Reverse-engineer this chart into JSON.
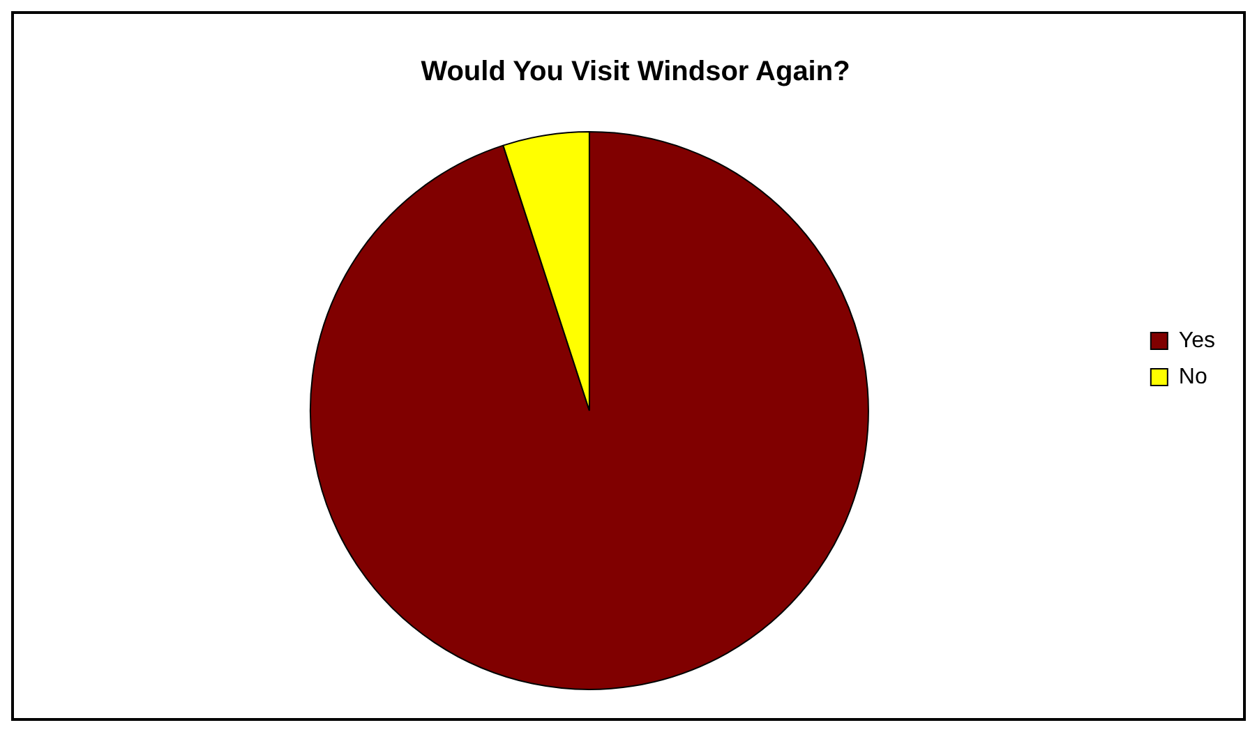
{
  "chart_data": {
    "type": "pie",
    "title": "Would You Visit Windsor Again?",
    "categories": [
      "Yes",
      "No"
    ],
    "values": [
      95,
      5
    ],
    "colors": [
      "#800000",
      "#ffff00"
    ],
    "legend": "right"
  }
}
